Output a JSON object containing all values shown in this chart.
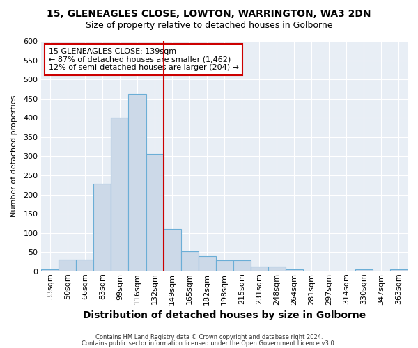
{
  "title1": "15, GLENEAGLES CLOSE, LOWTON, WARRINGTON, WA3 2DN",
  "title2": "Size of property relative to detached houses in Golborne",
  "xlabel": "Distribution of detached houses by size in Golborne",
  "ylabel": "Number of detached properties",
  "categories": [
    "33sqm",
    "50sqm",
    "66sqm",
    "83sqm",
    "99sqm",
    "116sqm",
    "132sqm",
    "149sqm",
    "165sqm",
    "182sqm",
    "198sqm",
    "215sqm",
    "231sqm",
    "248sqm",
    "264sqm",
    "281sqm",
    "297sqm",
    "314sqm",
    "330sqm",
    "347sqm",
    "363sqm"
  ],
  "values": [
    5,
    30,
    30,
    228,
    401,
    463,
    307,
    110,
    53,
    40,
    28,
    28,
    13,
    13,
    5,
    0,
    0,
    0,
    5,
    0,
    5
  ],
  "bar_color": "#ccd9e8",
  "bar_edge_color": "#6baed6",
  "vline_color": "#cc0000",
  "annotation_text": "15 GLENEAGLES CLOSE: 139sqm\n← 87% of detached houses are smaller (1,462)\n12% of semi-detached houses are larger (204) →",
  "annotation_box_facecolor": "#ffffff",
  "annotation_box_edgecolor": "#cc0000",
  "footer1": "Contains HM Land Registry data © Crown copyright and database right 2024.",
  "footer2": "Contains public sector information licensed under the Open Government Licence v3.0.",
  "bg_color": "#ffffff",
  "plot_bg_color": "#e8eef5",
  "grid_color": "#ffffff",
  "ylim": [
    0,
    600
  ],
  "yticks": [
    0,
    50,
    100,
    150,
    200,
    250,
    300,
    350,
    400,
    450,
    500,
    550,
    600
  ],
  "title1_fontsize": 10,
  "title2_fontsize": 9,
  "xlabel_fontsize": 10,
  "ylabel_fontsize": 8,
  "tick_fontsize": 8,
  "annotation_fontsize": 8,
  "footer_fontsize": 6
}
